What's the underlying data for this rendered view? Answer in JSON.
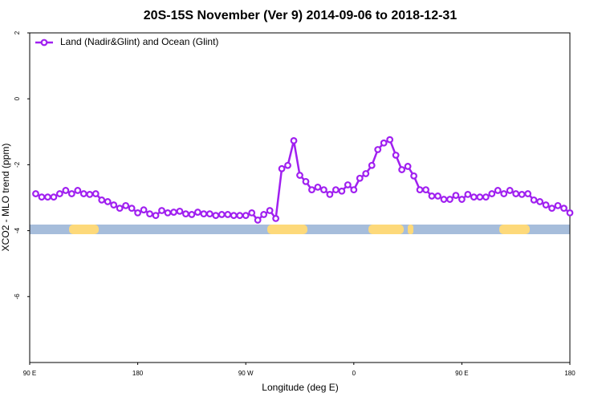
{
  "chart_data": {
    "type": "line",
    "title": "20S-15S November (Ver 9)   2014-09-06 to 2018-12-31",
    "x_label": "Longitude (deg E)",
    "y_label": "XCO2 - MLO trend (ppm)",
    "legend": "top-left",
    "xlim": [
      90,
      540
    ],
    "ylim": [
      -8,
      2
    ],
    "xticks": [
      {
        "value": 90,
        "label": "90 E"
      },
      180,
      {
        "value": 270,
        "label": "90 W"
      },
      {
        "value": 360,
        "label": "0"
      },
      {
        "value": 450,
        "label": "90 E"
      },
      {
        "value": 540,
        "label": "180"
      }
    ],
    "yticks": [
      -6,
      -4,
      -2,
      0,
      2
    ],
    "x": [
      95,
      100,
      105,
      110,
      115,
      120,
      125,
      130,
      135,
      140,
      145,
      150,
      155,
      160,
      165,
      170,
      175,
      180,
      185,
      190,
      195,
      200,
      205,
      210,
      215,
      220,
      225,
      230,
      235,
      240,
      245,
      250,
      255,
      260,
      265,
      270,
      275,
      280,
      285,
      290,
      295,
      300,
      305,
      310,
      315,
      320,
      325,
      330,
      335,
      340,
      345,
      350,
      355,
      360,
      365,
      370,
      375,
      380,
      385,
      390,
      395,
      400,
      405,
      410,
      415,
      420,
      425,
      430,
      435,
      440,
      445,
      450,
      455,
      460,
      465,
      470,
      475,
      480,
      485,
      490,
      495,
      500,
      505,
      510,
      515,
      520,
      525,
      530,
      535,
      540
    ],
    "series": [
      {
        "name": "Land (Nadir&Glint) and Ocean (Glint)",
        "color": "#a020f0",
        "values": [
          -2.88,
          -2.98,
          -2.98,
          -2.98,
          -2.88,
          -2.78,
          -2.88,
          -2.78,
          -2.88,
          -2.9,
          -2.88,
          -3.07,
          -3.12,
          -3.22,
          -3.32,
          -3.24,
          -3.32,
          -3.46,
          -3.37,
          -3.49,
          -3.54,
          -3.39,
          -3.46,
          -3.44,
          -3.41,
          -3.49,
          -3.51,
          -3.44,
          -3.49,
          -3.49,
          -3.54,
          -3.51,
          -3.51,
          -3.54,
          -3.54,
          -3.54,
          -3.46,
          -3.68,
          -3.51,
          -3.39,
          -3.63,
          -2.12,
          -2.02,
          -1.27,
          -2.32,
          -2.51,
          -2.76,
          -2.68,
          -2.76,
          -2.9,
          -2.76,
          -2.8,
          -2.61,
          -2.76,
          -2.41,
          -2.27,
          -2.02,
          -1.54,
          -1.34,
          -1.24,
          -1.71,
          -2.15,
          -2.05,
          -2.34,
          -2.76,
          -2.76,
          -2.95,
          -2.95,
          -3.05,
          -3.05,
          -2.93,
          -3.05,
          -2.9,
          -2.98,
          -2.98,
          -2.98,
          -2.88,
          -2.78,
          -2.88,
          -2.78,
          -2.88,
          -2.9,
          -2.88,
          -3.07,
          -3.12,
          -3.22,
          -3.32,
          -3.24,
          -3.32,
          -3.46
        ]
      }
    ]
  }
}
